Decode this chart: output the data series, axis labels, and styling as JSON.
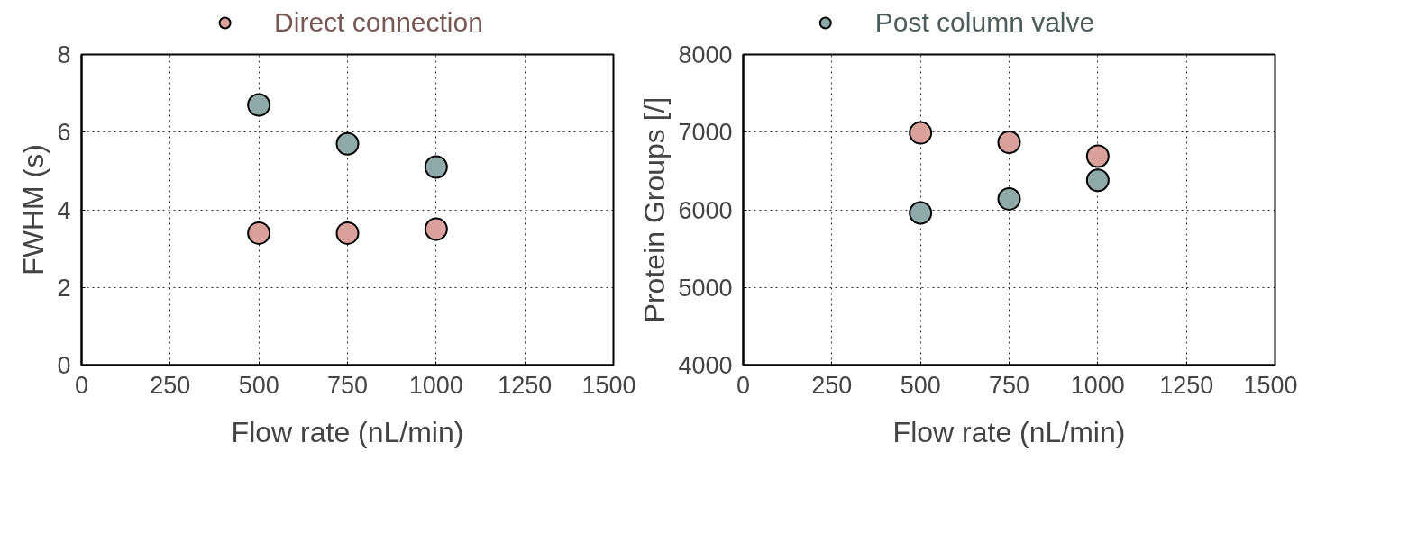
{
  "chart_data": [
    {
      "type": "scatter",
      "xlabel": "Flow rate (nL/min)",
      "ylabel": "FWHM (s)",
      "xlim": [
        0,
        1500
      ],
      "xticks": [
        0,
        250,
        500,
        750,
        1000,
        1250,
        1500
      ],
      "ylim": [
        0,
        8
      ],
      "yticks": [
        0,
        2,
        4,
        6,
        8
      ],
      "grid": true,
      "legend": "top",
      "marker": "circle",
      "series": [
        {
          "name": "Direct connection",
          "color": "#d9a09c",
          "x": [
            500,
            750,
            1000
          ],
          "values": [
            3.4,
            3.4,
            3.5
          ]
        },
        {
          "color": "#8fa8a8",
          "x": [
            500,
            750,
            1000
          ],
          "values": [
            6.7,
            5.7,
            5.1
          ]
        }
      ]
    },
    {
      "type": "scatter",
      "xlabel": "Flow rate (nL/min)",
      "ylabel": "Protein Groups [/]",
      "xlim": [
        0,
        1500
      ],
      "xticks": [
        0,
        250,
        500,
        750,
        1000,
        1250,
        1500
      ],
      "ylim": [
        4000,
        8000
      ],
      "yticks": [
        4000,
        5000,
        6000,
        7000,
        8000
      ],
      "grid": true,
      "legend": "top",
      "marker": "circle",
      "series": [
        {
          "color": "#d9a09c",
          "x": [
            500,
            750,
            1000
          ],
          "values": [
            6990,
            6870,
            6690
          ]
        },
        {
          "name": "Post column valve",
          "color": "#8fa8a8",
          "x": [
            500,
            750,
            1000
          ],
          "values": [
            5960,
            6140,
            6380
          ]
        }
      ]
    }
  ]
}
